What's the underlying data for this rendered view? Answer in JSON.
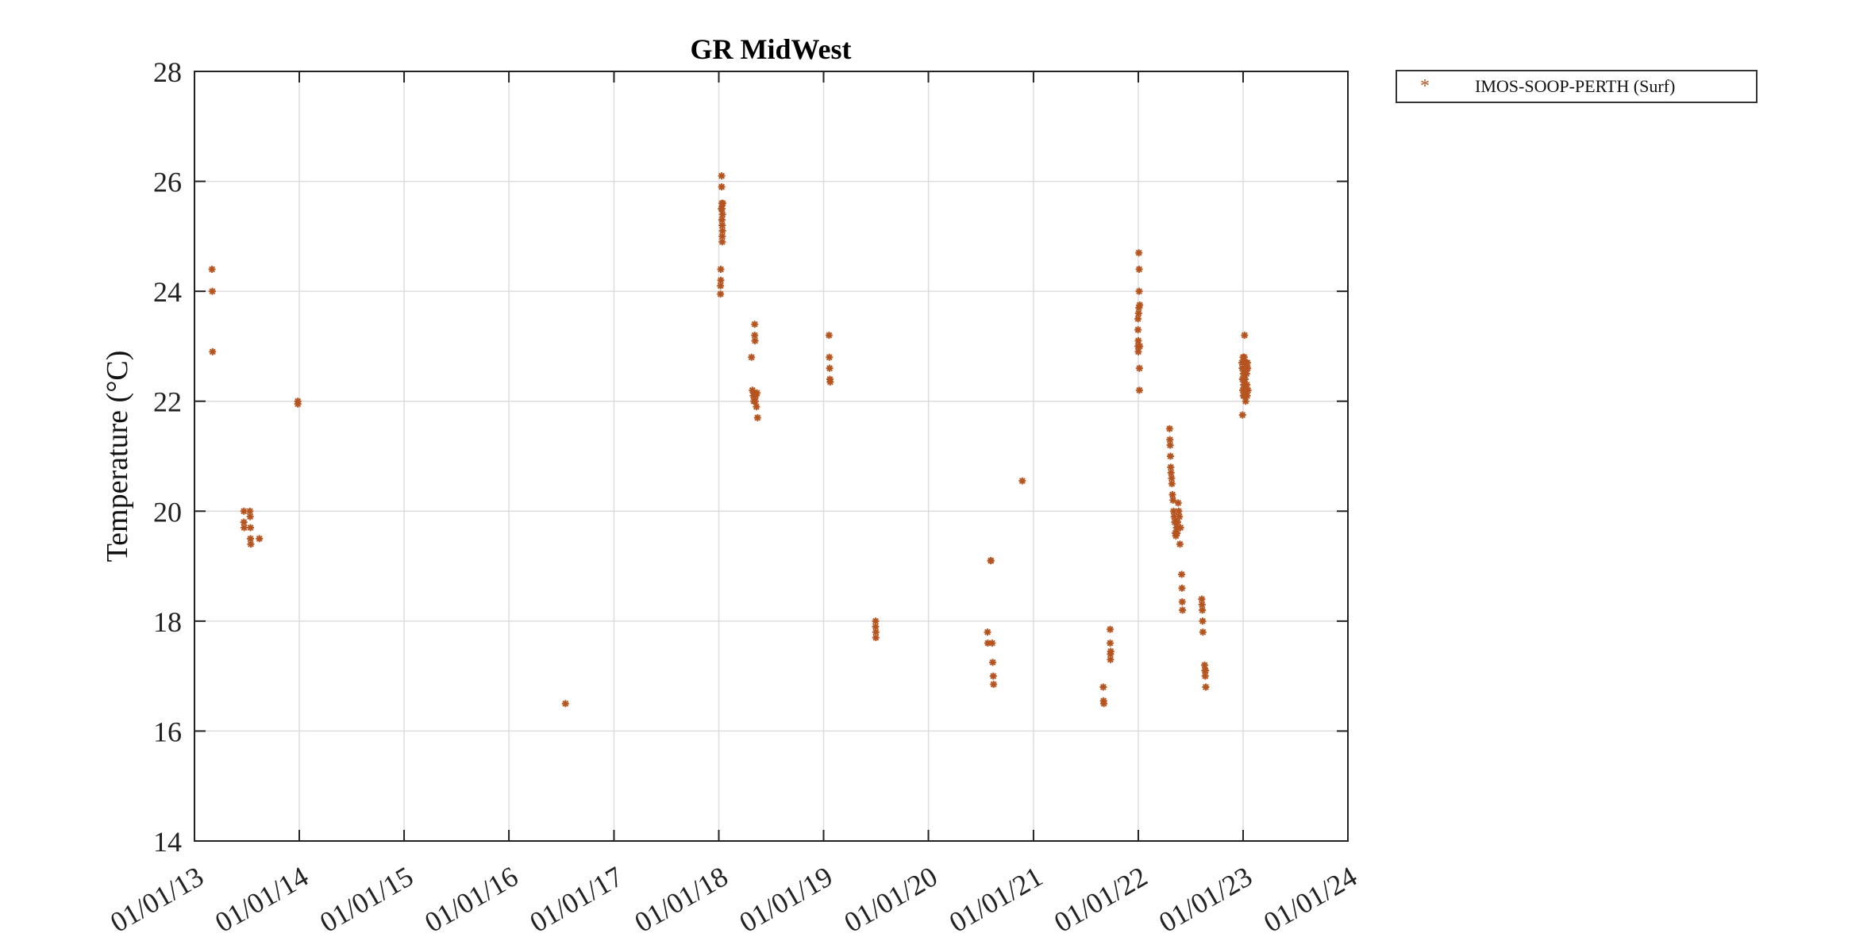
{
  "chart_data": {
    "type": "scatter",
    "title": "GR MidWest",
    "xlabel": "",
    "ylabel": "Temperature (°C)",
    "xlim": [
      "2013-01-01",
      "2024-01-01"
    ],
    "ylim": [
      14,
      28
    ],
    "y_ticks": [
      14,
      16,
      18,
      20,
      22,
      24,
      26,
      28
    ],
    "x_ticks": [
      "2013-01-01",
      "2014-01-01",
      "2015-01-01",
      "2016-01-01",
      "2017-01-01",
      "2018-01-01",
      "2019-01-01",
      "2020-01-01",
      "2021-01-01",
      "2022-01-01",
      "2023-01-01",
      "2024-01-01"
    ],
    "x_tick_labels": [
      "01/01/13",
      "01/01/14",
      "01/01/15",
      "01/01/16",
      "01/01/17",
      "01/01/18",
      "01/01/19",
      "01/01/20",
      "01/01/21",
      "01/01/22",
      "01/01/23",
      "01/01/24"
    ],
    "grid": true,
    "legend_placement": "outside-top-right",
    "series": [
      {
        "name": "IMOS-SOOP-PERTH (Surf)",
        "color": "#b5541f",
        "marker": "asterisk",
        "points": [
          [
            "2013-03-03",
            24.4
          ],
          [
            "2013-03-04",
            24.0
          ],
          [
            "2013-03-05",
            22.9
          ],
          [
            "2013-06-22",
            20.0
          ],
          [
            "2013-06-22",
            19.8
          ],
          [
            "2013-06-23",
            19.7
          ],
          [
            "2013-07-13",
            20.0
          ],
          [
            "2013-07-14",
            19.9
          ],
          [
            "2013-07-15",
            19.7
          ],
          [
            "2013-07-15",
            19.5
          ],
          [
            "2013-07-16",
            19.4
          ],
          [
            "2013-08-15",
            19.5
          ],
          [
            "2013-12-27",
            22.0
          ],
          [
            "2013-12-27",
            21.95
          ],
          [
            "2016-07-16",
            16.5
          ],
          [
            "2018-01-10",
            25.5
          ],
          [
            "2018-01-11",
            26.1
          ],
          [
            "2018-01-11",
            25.9
          ],
          [
            "2018-01-12",
            25.6
          ],
          [
            "2018-01-12",
            25.5
          ],
          [
            "2018-01-12",
            25.3
          ],
          [
            "2018-01-13",
            25.2
          ],
          [
            "2018-01-13",
            25.0
          ],
          [
            "2018-01-13",
            24.9
          ],
          [
            "2018-01-14",
            25.1
          ],
          [
            "2018-01-14",
            25.4
          ],
          [
            "2018-01-15",
            25.6
          ],
          [
            "2018-01-08",
            24.4
          ],
          [
            "2018-01-08",
            24.2
          ],
          [
            "2018-01-07",
            24.1
          ],
          [
            "2018-01-07",
            23.95
          ],
          [
            "2018-04-25",
            22.8
          ],
          [
            "2018-04-28",
            22.2
          ],
          [
            "2018-05-01",
            22.1
          ],
          [
            "2018-05-03",
            22.0
          ],
          [
            "2018-05-05",
            22.15
          ],
          [
            "2018-05-08",
            22.0
          ],
          [
            "2018-05-10",
            22.1
          ],
          [
            "2018-05-06",
            23.4
          ],
          [
            "2018-05-06",
            23.2
          ],
          [
            "2018-05-07",
            23.1
          ],
          [
            "2018-05-12",
            21.9
          ],
          [
            "2018-05-14",
            22.15
          ],
          [
            "2018-05-16",
            21.7
          ],
          [
            "2019-01-20",
            23.2
          ],
          [
            "2019-01-21",
            22.8
          ],
          [
            "2019-01-22",
            22.6
          ],
          [
            "2019-01-23",
            22.4
          ],
          [
            "2019-01-24",
            22.35
          ],
          [
            "2019-07-01",
            18.0
          ],
          [
            "2019-07-01",
            17.9
          ],
          [
            "2019-07-02",
            17.8
          ],
          [
            "2019-07-02",
            17.7
          ],
          [
            "2020-07-25",
            17.8
          ],
          [
            "2020-07-26",
            17.6
          ],
          [
            "2020-08-05",
            19.1
          ],
          [
            "2020-08-06",
            19.1
          ],
          [
            "2020-08-10",
            17.6
          ],
          [
            "2020-08-12",
            17.25
          ],
          [
            "2020-08-14",
            17.0
          ],
          [
            "2020-08-15",
            16.85
          ],
          [
            "2020-11-23",
            20.55
          ],
          [
            "2021-09-01",
            16.8
          ],
          [
            "2021-09-02",
            16.55
          ],
          [
            "2021-09-03",
            16.5
          ],
          [
            "2021-09-25",
            17.85
          ],
          [
            "2021-09-25",
            17.6
          ],
          [
            "2021-09-26",
            17.4
          ],
          [
            "2021-09-26",
            17.3
          ],
          [
            "2021-09-27",
            17.45
          ],
          [
            "2021-12-31",
            23.5
          ],
          [
            "2021-12-31",
            23.3
          ],
          [
            "2021-12-31",
            23.0
          ],
          [
            "2022-01-01",
            22.9
          ],
          [
            "2022-01-01",
            23.1
          ],
          [
            "2022-01-02",
            23.6
          ],
          [
            "2022-01-03",
            23.7
          ],
          [
            "2022-01-03",
            24.7
          ],
          [
            "2022-01-04",
            24.4
          ],
          [
            "2022-01-04",
            24.0
          ],
          [
            "2022-01-05",
            22.6
          ],
          [
            "2022-01-05",
            22.2
          ],
          [
            "2022-01-06",
            23.75
          ],
          [
            "2022-01-06",
            23.0
          ],
          [
            "2022-04-20",
            21.5
          ],
          [
            "2022-04-21",
            21.3
          ],
          [
            "2022-04-22",
            21.2
          ],
          [
            "2022-04-23",
            21.0
          ],
          [
            "2022-04-24",
            20.8
          ],
          [
            "2022-04-25",
            20.7
          ],
          [
            "2022-04-27",
            20.6
          ],
          [
            "2022-04-28",
            20.5
          ],
          [
            "2022-04-30",
            20.3
          ],
          [
            "2022-05-02",
            20.2
          ],
          [
            "2022-05-04",
            20.0
          ],
          [
            "2022-05-06",
            19.9
          ],
          [
            "2022-05-08",
            19.8
          ],
          [
            "2022-05-10",
            19.6
          ],
          [
            "2022-05-12",
            19.55
          ],
          [
            "2022-05-14",
            19.7
          ],
          [
            "2022-05-16",
            19.6
          ],
          [
            "2022-05-18",
            19.8
          ],
          [
            "2022-05-20",
            20.15
          ],
          [
            "2022-05-22",
            20.0
          ],
          [
            "2022-05-24",
            19.9
          ],
          [
            "2022-05-26",
            19.4
          ],
          [
            "2022-05-28",
            19.7
          ],
          [
            "2022-06-01",
            18.85
          ],
          [
            "2022-06-02",
            18.6
          ],
          [
            "2022-06-03",
            18.35
          ],
          [
            "2022-06-04",
            18.2
          ],
          [
            "2022-08-10",
            18.4
          ],
          [
            "2022-08-11",
            18.3
          ],
          [
            "2022-08-12",
            18.2
          ],
          [
            "2022-08-13",
            18.0
          ],
          [
            "2022-08-14",
            17.8
          ],
          [
            "2022-08-20",
            17.2
          ],
          [
            "2022-08-21",
            17.1
          ],
          [
            "2022-08-22",
            17.0
          ],
          [
            "2022-08-23",
            17.1
          ],
          [
            "2022-08-24",
            16.8
          ],
          [
            "2022-12-28",
            22.7
          ],
          [
            "2022-12-29",
            22.6
          ],
          [
            "2022-12-30",
            22.4
          ],
          [
            "2022-12-31",
            22.2
          ],
          [
            "2023-01-01",
            22.8
          ],
          [
            "2023-01-02",
            22.5
          ],
          [
            "2023-01-03",
            22.3
          ],
          [
            "2023-01-04",
            22.1
          ],
          [
            "2023-01-05",
            22.8
          ],
          [
            "2023-01-06",
            23.2
          ],
          [
            "2023-01-07",
            22.6
          ],
          [
            "2023-01-08",
            22.4
          ],
          [
            "2023-01-09",
            22.2
          ],
          [
            "2023-01-10",
            22.0
          ],
          [
            "2023-01-11",
            22.7
          ],
          [
            "2023-01-12",
            22.6
          ],
          [
            "2023-01-13",
            22.5
          ],
          [
            "2023-01-14",
            22.3
          ],
          [
            "2023-01-15",
            22.1
          ],
          [
            "2023-01-16",
            22.7
          ],
          [
            "2023-01-17",
            22.6
          ],
          [
            "2023-01-18",
            22.2
          ],
          [
            "2022-12-30",
            21.75
          ],
          [
            "2023-01-02",
            22.1
          ]
        ]
      }
    ]
  }
}
